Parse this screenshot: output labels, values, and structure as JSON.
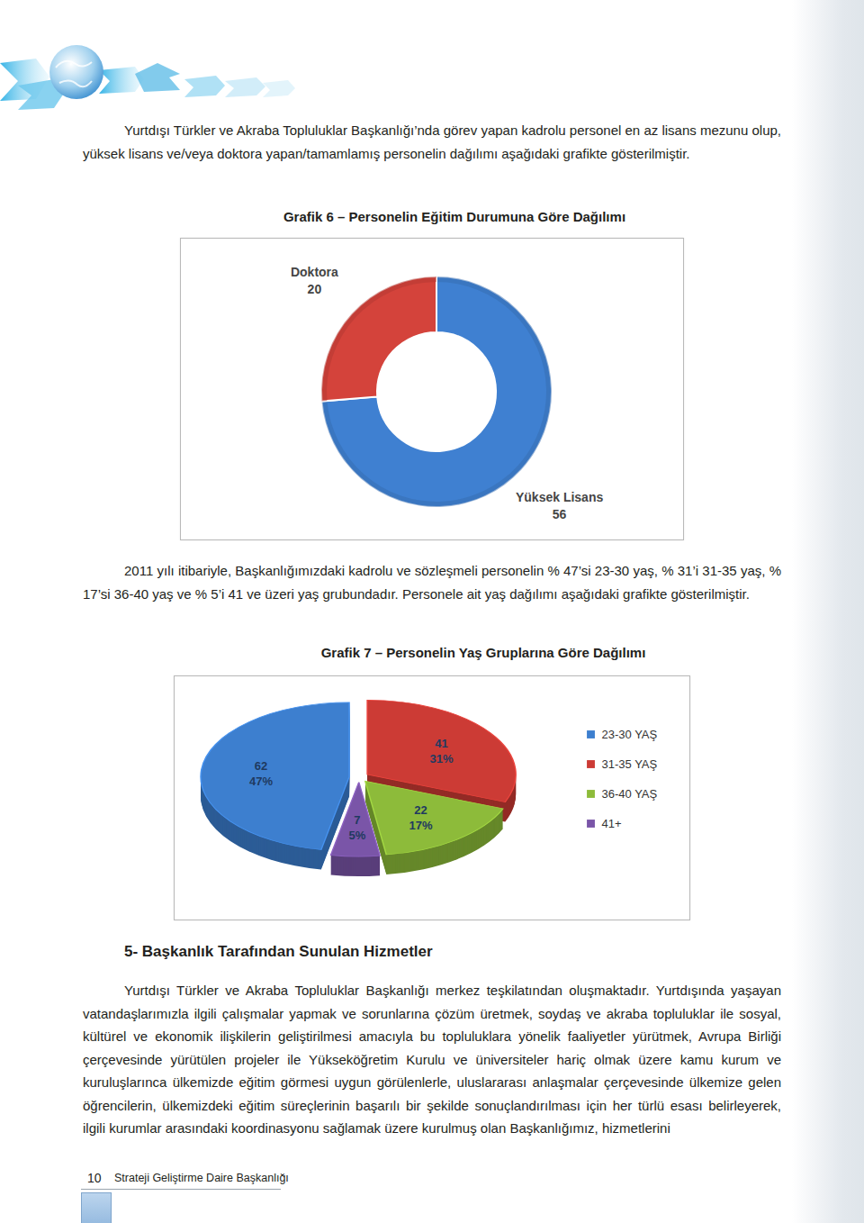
{
  "document": {
    "intro": "Yurtdışı Türkler ve Akraba Topluluklar Başkanlığı’nda görev yapan kadrolu personel en az lisans mezunu olup, yüksek lisans ve/veya doktora yapan/tamamlamış personelin dağılımı aşağıdaki grafikte gösterilmiştir.",
    "age_paragraph": "2011 yılı itibariyle, Başkanlığımızdaki kadrolu ve sözleşmeli personelin % 47’si 23-30 yaş, % 31’i 31-35 yaş, % 17’si 36-40 yaş ve % 5’i 41 ve üzeri yaş grubundadır. Personele ait yaş dağılımı aşağıdaki grafikte gösterilmiştir.",
    "section_heading": "5- Başkanlık Tarafından Sunulan Hizmetler",
    "section_text": "Yurtdışı Türkler ve Akraba Topluluklar Başkanlığı merkez teşkilatından oluşmaktadır. Yurtdışında yaşayan vatandaşlarımızla ilgili çalışmalar yapmak ve sorunlarına çözüm üretmek, soydaş ve akraba topluluklar ile sosyal, kültürel ve ekonomik ilişkilerin geliştirilmesi amacıyla bu topluluklara yönelik faaliyetler yürütmek, Avrupa Birliği çerçevesinde yürütülen projeler ile Yükseköğretim Kurulu ve üniversiteler hariç olmak üzere kamu kurum ve kuruluşlarınca ülkemizde eğitim görmesi uygun görülenlerle, uluslararası anlaşmalar çerçevesinde ülkemize gelen öğrencilerin, ülkemizdeki eğitim süreçlerinin başarılı bir şekilde sonuçlandırılması için her türlü esası belirleyerek, ilgili kurumlar arasındaki koordinasyonu sağlamak üzere kurulmuş olan Başkanlığımız, hizmetlerini",
    "footer": {
      "page": 10,
      "text": "Strateji Geliştirme Daire Başkanlığı"
    }
  },
  "chart_data": [
    {
      "type": "donut",
      "title": "Grafik 6 – Personelin Eğitim Durumuna Göre Dağılımı",
      "categories": [
        "Yüksek Lisans",
        "Doktora"
      ],
      "values": [
        56,
        20
      ],
      "colors": [
        "#3f80d1",
        "#d4433b"
      ],
      "data_labels": true
    },
    {
      "type": "pie",
      "title": "Grafik 7 – Personelin Yaş Gruplarına Göre Dağılımı",
      "categories": [
        "23-30 YAŞ",
        "31-35 YAŞ",
        "36-40 YAŞ",
        "41+"
      ],
      "values": [
        62,
        41,
        22,
        7
      ],
      "percent_labels": [
        "47%",
        "31%",
        "17%",
        "5%"
      ],
      "colors": [
        "#3d7fcf",
        "#cc3b35",
        "#8dbb3a",
        "#7a55a8"
      ],
      "data_labels": true,
      "legend": "right"
    }
  ]
}
